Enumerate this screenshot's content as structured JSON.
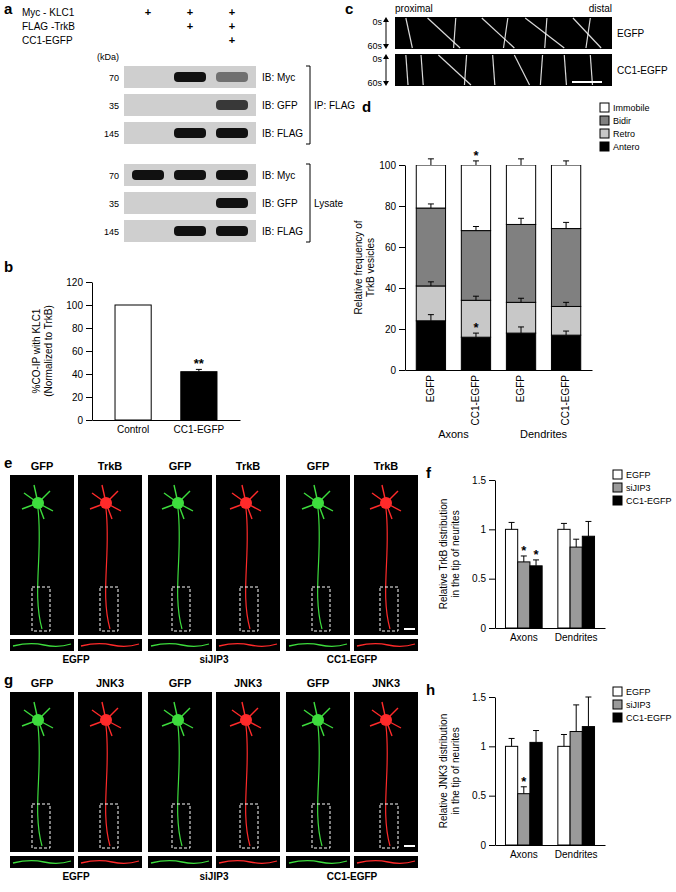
{
  "panels": {
    "a": {
      "label": "a",
      "conditions": [
        {
          "name": "Myc - KLC1",
          "signs": [
            "+",
            "+",
            "+"
          ]
        },
        {
          "name": "FLAG -TrkB",
          "signs": [
            null,
            "+",
            "+"
          ]
        },
        {
          "name": "CC1-EGFP",
          "signs": [
            null,
            null,
            "+"
          ]
        }
      ],
      "kda_label": "(kDa)",
      "sections": [
        {
          "name": "IP: FLAG",
          "rows": [
            {
              "kda": 70,
              "ib": "IB: Myc",
              "bands": [
                0,
                1,
                0.5
              ]
            },
            {
              "kda": 35,
              "ib": "IB: GFP",
              "bands": [
                0,
                0,
                0.8
              ]
            },
            {
              "kda": 145,
              "ib": "IB: FLAG",
              "bands": [
                0,
                1,
                1
              ]
            }
          ]
        },
        {
          "name": "Lysate",
          "rows": [
            {
              "kda": 70,
              "ib": "IB: Myc",
              "bands": [
                1,
                1,
                1
              ]
            },
            {
              "kda": 35,
              "ib": "IB: GFP",
              "bands": [
                0,
                0,
                1
              ]
            },
            {
              "kda": 145,
              "ib": "IB: FLAG",
              "bands": [
                0,
                1,
                1
              ]
            }
          ]
        }
      ]
    },
    "c": {
      "label": "c",
      "start": "proximal",
      "end": "distal",
      "times": [
        "0s",
        "60s"
      ],
      "rows": [
        "EGFP",
        "CC1-EGFP"
      ]
    },
    "e": {
      "label": "e",
      "columns": [
        {
          "condition": "EGFP",
          "channels": [
            "GFP",
            "TrkB"
          ]
        },
        {
          "condition": "siJIP3",
          "channels": [
            "GFP",
            "TrkB"
          ]
        },
        {
          "condition": "CC1-EGFP",
          "channels": [
            "GFP",
            "TrkB"
          ]
        }
      ]
    },
    "g": {
      "label": "g",
      "columns": [
        {
          "condition": "EGFP",
          "channels": [
            "GFP",
            "JNK3"
          ]
        },
        {
          "condition": "siJIP3",
          "channels": [
            "GFP",
            "JNK3"
          ]
        },
        {
          "condition": "CC1-EGFP",
          "channels": [
            "GFP",
            "JNK3"
          ]
        }
      ]
    }
  },
  "chart_data": [
    {
      "panel": "b",
      "type": "bar",
      "categories": [
        "Control",
        "CC1-EGFP"
      ],
      "values": [
        100,
        42
      ],
      "errors": [
        null,
        2
      ],
      "colors": [
        "#ffffff",
        "#000000"
      ],
      "y_label": [
        "%CO-IP with KLC1",
        "(Normalized to TrkB)"
      ],
      "ylim": [
        0,
        120
      ],
      "yticks": [
        0,
        20,
        40,
        60,
        80,
        100,
        120
      ],
      "annotations": [
        {
          "text": "**",
          "category": 1
        }
      ]
    },
    {
      "panel": "d",
      "type": "bar",
      "stacked": true,
      "categories": [
        "EGFP",
        "CC1-EGFP",
        "EGFP",
        "CC1-EGFP"
      ],
      "groups": [
        "Axons",
        "Dendrites"
      ],
      "series": [
        {
          "name": "Antero",
          "color": "#000000",
          "values": [
            24,
            16,
            18,
            17
          ],
          "errors": [
            3,
            2,
            3,
            2
          ]
        },
        {
          "name": "Retro",
          "color": "#c8c8c8",
          "values": [
            17,
            18,
            15,
            14
          ],
          "errors": [
            2,
            2,
            2,
            2
          ]
        },
        {
          "name": "Bidir",
          "color": "#808080",
          "values": [
            38,
            34,
            38,
            38
          ],
          "errors": [
            2,
            2,
            3,
            3
          ]
        },
        {
          "name": "Immobile",
          "color": "#ffffff",
          "values": [
            21,
            32,
            29,
            31
          ],
          "errors": [
            3,
            2,
            3,
            2
          ]
        }
      ],
      "legend": "top-right",
      "y_label": [
        "Relative frequency of",
        "TrkB vesicles"
      ],
      "ylim": [
        0,
        100
      ],
      "yticks": [
        0,
        20,
        40,
        60,
        80,
        100
      ],
      "annotations": [
        {
          "text": "*",
          "series": 0,
          "category": 1
        },
        {
          "text": "*",
          "series": 3,
          "category": 1
        }
      ]
    },
    {
      "panel": "f",
      "type": "bar",
      "categories": [
        "Axons",
        "Dendrites"
      ],
      "series": [
        {
          "name": "EGFP",
          "color": "#ffffff",
          "values": [
            1.0,
            1.0
          ],
          "errors": [
            0.07,
            0.06
          ]
        },
        {
          "name": "siJIP3",
          "color": "#9a9a9a",
          "values": [
            0.67,
            0.82
          ],
          "errors": [
            0.06,
            0.08
          ]
        },
        {
          "name": "CC1-EGFP",
          "color": "#000000",
          "values": [
            0.63,
            0.93
          ],
          "errors": [
            0.06,
            0.15
          ]
        }
      ],
      "legend": "top-right",
      "y_label": [
        "Relative TrkB distribution",
        "in the tip of neurites"
      ],
      "ylim": [
        0,
        1.5
      ],
      "yticks": [
        0,
        0.5,
        1,
        1.5
      ],
      "annotations": [
        {
          "text": "*",
          "series": 1,
          "category": 0
        },
        {
          "text": "*",
          "series": 2,
          "category": 0
        }
      ]
    },
    {
      "panel": "h",
      "type": "bar",
      "categories": [
        "Axons",
        "Dendrites"
      ],
      "series": [
        {
          "name": "EGFP",
          "color": "#ffffff",
          "values": [
            1.0,
            1.0
          ],
          "errors": [
            0.08,
            0.12
          ]
        },
        {
          "name": "siJIP3",
          "color": "#9a9a9a",
          "values": [
            0.52,
            1.15
          ],
          "errors": [
            0.07,
            0.27
          ]
        },
        {
          "name": "CC1-EGFP",
          "color": "#000000",
          "values": [
            1.04,
            1.2
          ],
          "errors": [
            0.12,
            0.3
          ]
        }
      ],
      "legend": "top-right",
      "y_label": [
        "Relative JNK3 distribution",
        "in the tip of neurites"
      ],
      "ylim": [
        0,
        1.5
      ],
      "yticks": [
        0,
        0.5,
        1,
        1.5
      ],
      "annotations": [
        {
          "text": "*",
          "series": 1,
          "category": 0
        }
      ]
    }
  ]
}
